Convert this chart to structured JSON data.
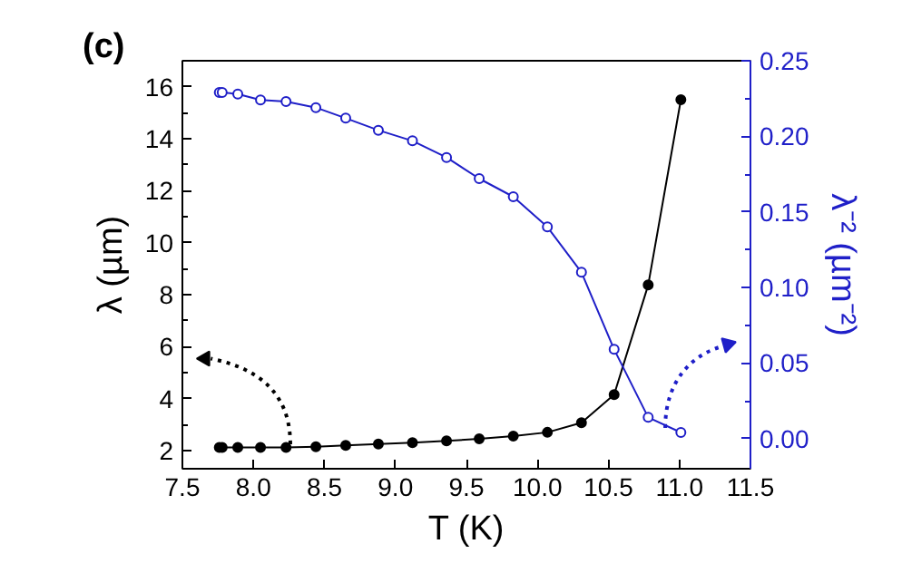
{
  "chart_data": {
    "type": "line",
    "title": "(c)",
    "xlabel": "T (K)",
    "ylabel": "λ (µm)",
    "y2label": "λ⁻² (µm⁻²)",
    "x": [
      7.76,
      7.78,
      7.89,
      8.05,
      8.23,
      8.44,
      8.65,
      8.88,
      9.12,
      9.36,
      9.59,
      9.83,
      10.07,
      10.31,
      10.54,
      10.78,
      11.01
    ],
    "series": [
      {
        "color": "#000000",
        "axis": "y",
        "values": [
          2.12,
          2.12,
          2.12,
          2.12,
          2.12,
          2.15,
          2.2,
          2.25,
          2.3,
          2.37,
          2.45,
          2.56,
          2.7,
          3.07,
          4.15,
          8.37,
          15.5
        ]
      },
      {
        "color": "#1f1fc8",
        "axis": "y2",
        "values": [
          0.229,
          0.229,
          0.228,
          0.224,
          0.223,
          0.219,
          0.212,
          0.204,
          0.197,
          0.186,
          0.172,
          0.16,
          0.14,
          0.11,
          0.059,
          0.014,
          0.004
        ]
      }
    ],
    "xlim": [
      7.5,
      11.5
    ],
    "xticks": [
      7.5,
      {
        "value": 8,
        "label": "8.0"
      },
      8.5,
      {
        "value": 9,
        "label": "9.0"
      },
      9.5,
      {
        "value": 10,
        "label": "10.0"
      },
      10.5,
      {
        "value": 11,
        "label": "11.0"
      },
      11.5
    ],
    "ylim": [
      1.3,
      17
    ],
    "yticks": [
      2,
      4,
      6,
      8,
      10,
      12,
      14,
      16
    ],
    "y2lim": [
      -0.02,
      0.25
    ],
    "y2ticks": [
      {
        "value": 0,
        "label": "0.00"
      },
      {
        "value": 0.05,
        "label": "0.05"
      },
      {
        "value": 0.1,
        "label": "0.10"
      },
      {
        "value": 0.15,
        "label": "0.15"
      },
      {
        "value": 0.2,
        "label": "0.20"
      },
      {
        "value": 0.25,
        "label": "0.25"
      }
    ],
    "marker": "circle",
    "line_style": "solid",
    "grid": false
  }
}
